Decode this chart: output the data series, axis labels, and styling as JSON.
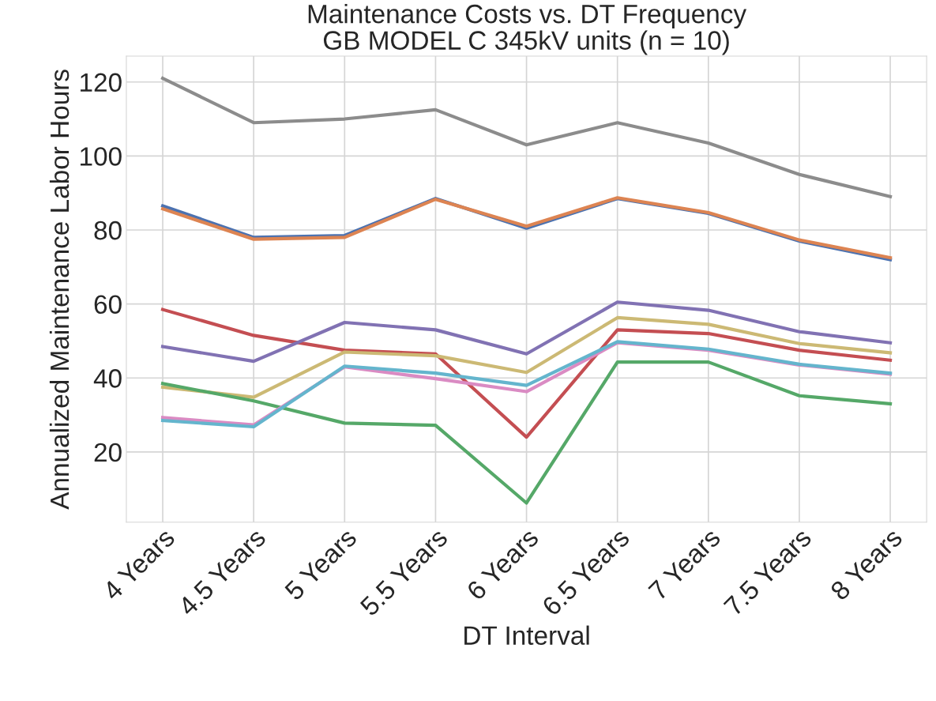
{
  "chart_data": {
    "type": "line",
    "title": "Maintenance Costs vs. DT Frequency\nGB MODEL C 345kV units (n = 10)",
    "xlabel": "DT Interval",
    "ylabel": "Annualized Maintenance Labor Hours",
    "categories": [
      "4 Years",
      "4.5 Years",
      "5 Years",
      "5.5 Years",
      "6 Years",
      "6.5 Years",
      "7 Years",
      "7.5 Years",
      "8 Years"
    ],
    "ylim": [
      1,
      127
    ],
    "yticks": [
      20,
      40,
      60,
      80,
      100,
      120
    ],
    "grid": true,
    "line_style": "solid",
    "series": [
      {
        "color": "#8c8c8c",
        "values": [
          121,
          109,
          110,
          112.5,
          103,
          109,
          103.5,
          95,
          89
        ]
      },
      {
        "color": "#4c72b0",
        "values": [
          86.5,
          78,
          78.5,
          88.5,
          80.5,
          88.5,
          84.5,
          77,
          72
        ]
      },
      {
        "color": "#dd8452",
        "values": [
          85.7,
          77.5,
          78,
          88.3,
          81,
          88.7,
          84.7,
          77.3,
          72.5
        ]
      },
      {
        "color": "#c44e52",
        "values": [
          58.5,
          51.5,
          47.5,
          46.5,
          24,
          53,
          52,
          47.5,
          44.8
        ]
      },
      {
        "color": "#8172b3",
        "values": [
          48.5,
          44.5,
          55,
          53,
          46.5,
          60.5,
          58.3,
          52.5,
          49.5
        ]
      },
      {
        "color": "#ccb974",
        "values": [
          37.5,
          34.8,
          47,
          46,
          41.5,
          56.3,
          54.5,
          49.3,
          46.8
        ]
      },
      {
        "color": "#55a868",
        "values": [
          38.5,
          33.8,
          27.8,
          27.2,
          6.2,
          44.3,
          44.3,
          35.2,
          33
        ]
      },
      {
        "color": "#da8bc3",
        "values": [
          29.3,
          27.3,
          43,
          39.8,
          36.3,
          49.5,
          47.5,
          43.5,
          41
        ]
      },
      {
        "color": "#64b5cd",
        "values": [
          28.5,
          26.8,
          43.2,
          41.3,
          38,
          49.8,
          47.8,
          43.7,
          41.3
        ]
      }
    ]
  }
}
